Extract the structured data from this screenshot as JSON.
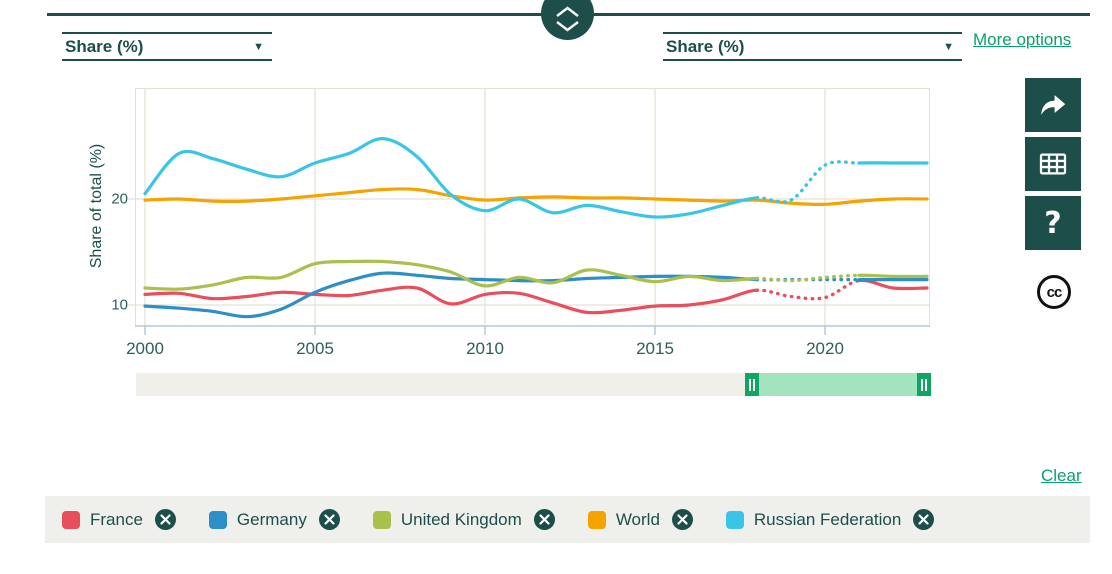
{
  "header": {
    "left_unit_select": {
      "value": "Share (%)",
      "icon": "chevron-down-icon"
    },
    "right_unit_select": {
      "value": "Share (%)",
      "icon": "chevron-down-icon"
    },
    "more_options_label": "More options",
    "collapse_button_icon": "chevron-up-down-icon"
  },
  "chart_data": {
    "type": "line",
    "title": "",
    "xlabel": "",
    "ylabel": "Share of total (%)",
    "x": [
      2000,
      2001,
      2002,
      2003,
      2004,
      2005,
      2006,
      2007,
      2008,
      2009,
      2010,
      2011,
      2012,
      2013,
      2014,
      2015,
      2016,
      2017,
      2018,
      2019,
      2020,
      2021,
      2022,
      2023
    ],
    "xticks": [
      2000,
      2005,
      2010,
      2015,
      2020
    ],
    "yticks": [
      10,
      20
    ],
    "ylim": [
      7.6,
      30.6
    ],
    "grid": true,
    "legend_position": "bottom",
    "note": "segments between 2018 and 2021 are drawn dotted (provisional values)",
    "series": [
      {
        "name": "France",
        "color": "#e84e5c",
        "dotted": [
          2018,
          2021
        ],
        "values": [
          11.0,
          11.1,
          10.6,
          10.8,
          11.2,
          11.0,
          10.9,
          11.4,
          11.6,
          10.1,
          11.0,
          11.1,
          10.2,
          9.3,
          9.5,
          9.9,
          10.0,
          10.5,
          11.4,
          10.8,
          10.7,
          12.3,
          11.6,
          11.6
        ]
      },
      {
        "name": "Germany",
        "color": "#2e8fc8",
        "dotted": [
          2018,
          2021
        ],
        "values": [
          9.9,
          9.7,
          9.4,
          8.9,
          9.6,
          11.2,
          12.3,
          13.0,
          12.8,
          12.5,
          12.4,
          12.3,
          12.3,
          12.5,
          12.6,
          12.7,
          12.7,
          12.6,
          12.4,
          12.4,
          12.4,
          12.4,
          12.4,
          12.4
        ]
      },
      {
        "name": "United Kingdom",
        "color": "#a8c04c",
        "dotted": [
          2018,
          2021
        ],
        "values": [
          11.6,
          11.5,
          11.9,
          12.6,
          12.6,
          13.9,
          14.1,
          14.1,
          13.8,
          13.1,
          11.8,
          12.6,
          12.1,
          13.3,
          12.8,
          12.2,
          12.7,
          12.3,
          12.5,
          12.3,
          12.6,
          12.8,
          12.7,
          12.7
        ]
      },
      {
        "name": "World",
        "color": "#f4a300",
        "values": [
          19.9,
          20.0,
          19.8,
          19.8,
          20.0,
          20.3,
          20.6,
          20.9,
          20.9,
          20.3,
          19.9,
          20.1,
          20.2,
          20.1,
          20.1,
          20.0,
          19.9,
          19.8,
          19.9,
          19.6,
          19.5,
          19.8,
          20.0,
          20.0
        ]
      },
      {
        "name": "Russian Federation",
        "color": "#38c5e8",
        "dotted": [
          2018,
          2021
        ],
        "values": [
          20.5,
          24.3,
          23.8,
          22.8,
          22.1,
          23.4,
          24.3,
          25.7,
          24.0,
          20.4,
          18.9,
          20.0,
          18.7,
          19.4,
          18.8,
          18.3,
          18.6,
          19.4,
          20.1,
          19.9,
          23.2,
          23.4,
          23.4,
          23.4
        ]
      }
    ]
  },
  "toolbar": {
    "buttons": [
      {
        "name": "share",
        "icon": "share-arrow-icon"
      },
      {
        "name": "data-table",
        "icon": "table-icon"
      },
      {
        "name": "help",
        "icon": "question-mark-icon",
        "glyph": "?"
      }
    ],
    "license": {
      "icon": "creative-commons-icon",
      "glyph": "cc"
    }
  },
  "slider": {
    "full_range": [
      2000,
      2023
    ],
    "selected_years": [
      2018,
      2023
    ]
  },
  "legend": {
    "clear_label": "Clear",
    "items": [
      {
        "label": "France",
        "color": "#e84e5c"
      },
      {
        "label": "Germany",
        "color": "#2e8fc8"
      },
      {
        "label": "United Kingdom",
        "color": "#a8c04c"
      },
      {
        "label": "World",
        "color": "#f4a300"
      },
      {
        "label": "Russian Federation",
        "color": "#38c5e8"
      }
    ]
  },
  "colors": {
    "accent_teal": "#1d4e4a",
    "link_green": "#0ba06a",
    "grid_line": "#e4e1d4",
    "axis_line": "#b3c8dd",
    "legend_bg": "#eff0eb",
    "slider_track": "#f0efe9",
    "slider_fill": "#a3e3c0",
    "slider_handle": "#0fa562"
  }
}
